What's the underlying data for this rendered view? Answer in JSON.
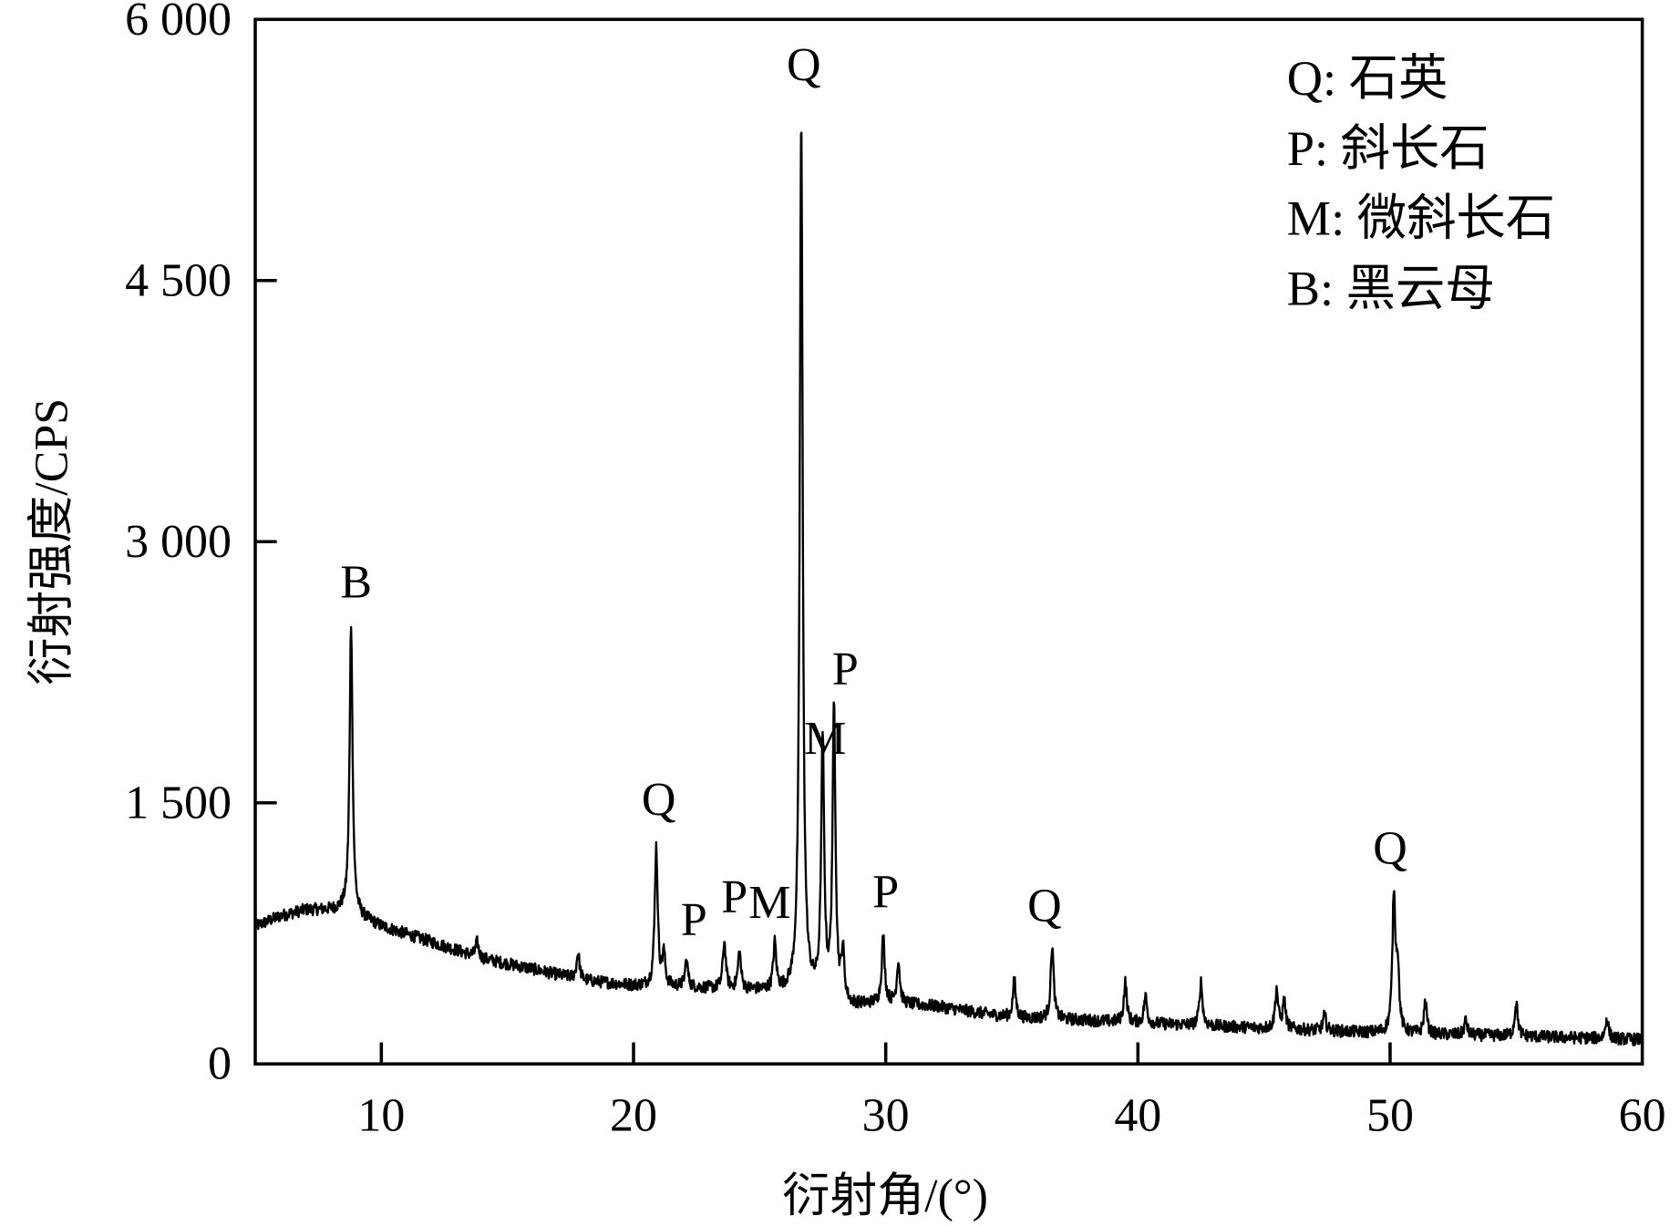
{
  "chart_data": {
    "type": "line",
    "title": "",
    "xlabel": "衍射角/(°)",
    "ylabel": "衍射强度/CPS",
    "xlim": [
      5,
      60
    ],
    "ylim": [
      0,
      6000
    ],
    "xticks": [
      10,
      20,
      30,
      40,
      50,
      60
    ],
    "xtick_labels": [
      "10",
      "20",
      "30",
      "40",
      "50",
      "60"
    ],
    "yticks": [
      0,
      1500,
      3000,
      4500,
      6000
    ],
    "ytick_labels": [
      "0",
      "1 500",
      "3 000",
      "4 500",
      "6 000"
    ],
    "grid": false,
    "line_color": "#000000",
    "background": [
      [
        5,
        790
      ],
      [
        6,
        850
      ],
      [
        7,
        885
      ],
      [
        8.5,
        885
      ],
      [
        10,
        790
      ],
      [
        12,
        700
      ],
      [
        14,
        605
      ],
      [
        16,
        545
      ],
      [
        18,
        480
      ],
      [
        20,
        450
      ],
      [
        22,
        440
      ],
      [
        25,
        420
      ],
      [
        27,
        400
      ],
      [
        28.6,
        330
      ],
      [
        30,
        350
      ],
      [
        32,
        330
      ],
      [
        35,
        265
      ],
      [
        38,
        250
      ],
      [
        40,
        235
      ],
      [
        45,
        205
      ],
      [
        50,
        175
      ],
      [
        55,
        160
      ],
      [
        60,
        140
      ]
    ],
    "peaks": [
      [
        8.8,
        2525
      ],
      [
        13.8,
        700
      ],
      [
        17.8,
        640
      ],
      [
        20.9,
        1245
      ],
      [
        21.2,
        620
      ],
      [
        22.1,
        590
      ],
      [
        23.6,
        700
      ],
      [
        24.2,
        640
      ],
      [
        25.6,
        680
      ],
      [
        26.65,
        5430
      ],
      [
        27.5,
        1845
      ],
      [
        27.95,
        2030
      ],
      [
        28.3,
        620
      ],
      [
        29.9,
        730
      ],
      [
        30.5,
        590
      ],
      [
        35.1,
        480
      ],
      [
        36.6,
        680
      ],
      [
        39.5,
        470
      ],
      [
        40.3,
        390
      ],
      [
        42.5,
        470
      ],
      [
        45.5,
        430
      ],
      [
        45.8,
        360
      ],
      [
        47.4,
        280
      ],
      [
        50.15,
        960
      ],
      [
        50.3,
        530
      ],
      [
        51.4,
        360
      ],
      [
        53,
        250
      ],
      [
        55,
        360
      ],
      [
        58.6,
        265
      ]
    ],
    "annotations": [
      {
        "text": "B",
        "x": 9.0,
        "y": 2680
      },
      {
        "text": "Q",
        "x": 21.0,
        "y": 1430
      },
      {
        "text": "P",
        "x": 22.4,
        "y": 740
      },
      {
        "text": "P",
        "x": 24.0,
        "y": 870
      },
      {
        "text": "M",
        "x": 25.4,
        "y": 840
      },
      {
        "text": "Q",
        "x": 26.75,
        "y": 5650
      },
      {
        "text": "M",
        "x": 27.6,
        "y": 1780
      },
      {
        "text": "P",
        "x": 28.4,
        "y": 2180
      },
      {
        "text": "P",
        "x": 30.0,
        "y": 900
      },
      {
        "text": "Q",
        "x": 36.3,
        "y": 820
      },
      {
        "text": "Q",
        "x": 50.0,
        "y": 1150
      }
    ],
    "legend": {
      "position": "top-right",
      "entries": [
        "Q: 石英",
        "P: 斜长石",
        "M: 微斜长石",
        "B: 黑云母"
      ]
    }
  }
}
